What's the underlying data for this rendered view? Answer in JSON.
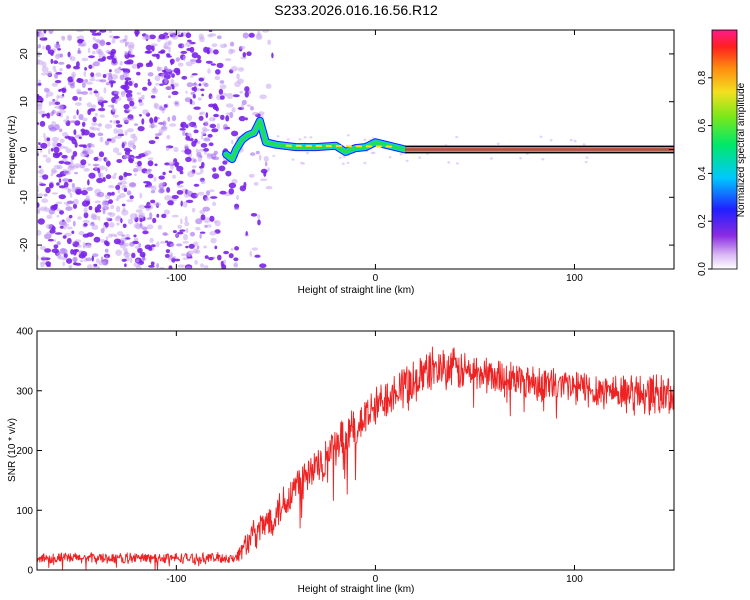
{
  "title": "S233.2026.016.16.56.R12",
  "colors": {
    "snr_line": "#ee2222",
    "ridge_core": "#e8324a",
    "ridge_green": "#22dd55",
    "noise_purple": "#7a22e8",
    "noise_light": "#c9a6f2"
  },
  "chart_data": [
    {
      "type": "heatmap",
      "title": "S233.2026.016.16.56.R12",
      "xlabel": "Height of straight line (km)",
      "ylabel": "Frequency (Hz)",
      "xlim": [
        -170,
        150
      ],
      "ylim": [
        -25,
        25
      ],
      "xticks": [
        -100,
        0,
        100
      ],
      "xtick_labels": [
        "-100",
        "0",
        "100"
      ],
      "yticks": [
        -20,
        -10,
        0,
        10,
        20
      ],
      "ytick_labels": [
        "-20",
        "-10",
        "0",
        "10",
        "20"
      ],
      "noise_region_x": [
        -170,
        -55
      ],
      "ridge": {
        "x": [
          -75,
          -72,
          -70,
          -67,
          -64,
          -61,
          -58,
          -55,
          -50,
          -40,
          -30,
          -20,
          -15,
          -10,
          -5,
          0,
          5,
          10,
          15,
          50,
          100,
          150
        ],
        "y": [
          -1,
          -2,
          0,
          2,
          3,
          3.5,
          6,
          1.5,
          1,
          0.5,
          0.5,
          0.8,
          -0.5,
          0.3,
          0.5,
          1.5,
          1,
          0.5,
          0,
          0,
          0,
          0
        ]
      },
      "colorbar": {
        "label": "Normalized spectral amplitude",
        "range": [
          0,
          1
        ],
        "ticks": [
          0.0,
          0.2,
          0.4,
          0.6,
          0.8
        ],
        "tick_labels": [
          "0.0",
          "0.2",
          "0.4",
          "0.6",
          "0.8"
        ]
      }
    },
    {
      "type": "line",
      "xlabel": "Height of straight line (km)",
      "ylabel": "SNR (10 * v/v)",
      "xlim": [
        -170,
        150
      ],
      "ylim": [
        0,
        400
      ],
      "xticks": [
        -100,
        0,
        100
      ],
      "xtick_labels": [
        "-100",
        "0",
        "100"
      ],
      "yticks": [
        0,
        100,
        200,
        300,
        400
      ],
      "ytick_labels": [
        "0",
        "100",
        "200",
        "300",
        "400"
      ],
      "series": [
        {
          "name": "SNR",
          "trend_x": [
            -170,
            -70,
            -65,
            -50,
            -40,
            -30,
            -20,
            -10,
            0,
            10,
            20,
            30,
            40,
            50,
            60,
            80,
            100,
            120,
            140,
            150
          ],
          "trend_y": [
            20,
            20,
            45,
            95,
            140,
            170,
            205,
            240,
            270,
            305,
            320,
            340,
            335,
            330,
            325,
            315,
            305,
            300,
            295,
            290
          ],
          "noise_amplitude": [
            10,
            10,
            25,
            35,
            40,
            40,
            40,
            40,
            40,
            40,
            40,
            40,
            40,
            35,
            35,
            35,
            35,
            35,
            40,
            40
          ]
        }
      ]
    }
  ]
}
